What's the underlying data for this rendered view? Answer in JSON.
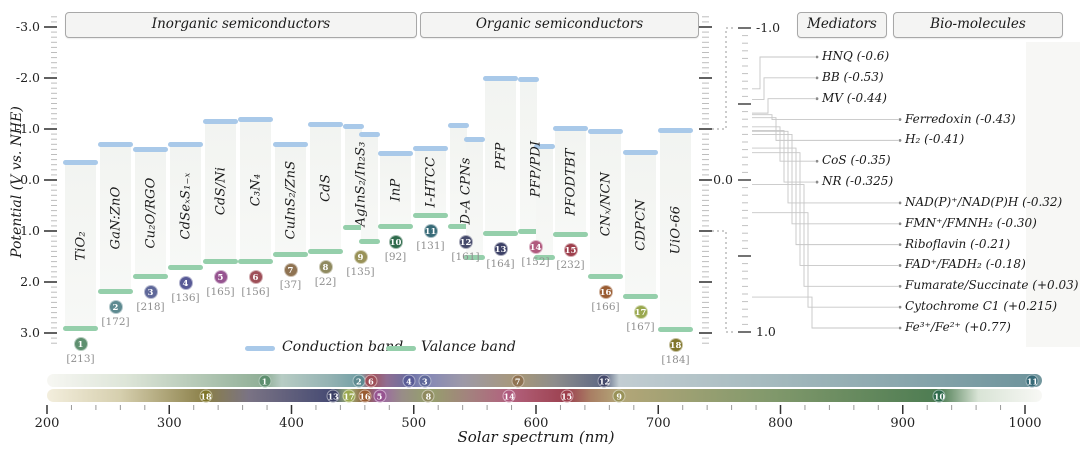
{
  "sections": {
    "inorganic": "Inorganic semiconductors",
    "organic": "Organic semiconductors",
    "mediators": "Mediators",
    "biomolecules": "Bio-molecules"
  },
  "y_axis": {
    "title": "Potential (V vs. NHE)",
    "ticks": [
      -3,
      -2,
      -1,
      0,
      1,
      2,
      3
    ],
    "minor_step": 0.1
  },
  "right_axis": {
    "ticks": [
      -1,
      0,
      1
    ],
    "minor_step": 0.05,
    "range": [
      -1,
      1
    ]
  },
  "legend": {
    "conduction_label": "Conduction band",
    "valence_label": "Valance band",
    "conduction_color": "#a9c9e9",
    "valence_color": "#95cfab"
  },
  "chart_data": {
    "type": "band-energy-diagram",
    "ylabel": "Potential (V vs. NHE)",
    "ylim": [
      -3.2,
      3.2
    ],
    "semiconductors": [
      {
        "n": 1,
        "label": "TiO₂",
        "cite": "[213]",
        "color": "#5e8f6f",
        "group": "inorganic",
        "bands": [
          {
            "cb": -0.35,
            "vb": 2.92
          }
        ],
        "badge_bar": 0,
        "edge_nm": 378,
        "spectrum_row": "top"
      },
      {
        "n": 2,
        "label": "GaN:ZnO",
        "cite": "[172]",
        "color": "#5d8a90",
        "group": "inorganic",
        "bands": [
          {
            "cb": -0.7,
            "vb": 2.2
          }
        ],
        "badge_bar": 0,
        "edge_nm": 455,
        "spectrum_row": "top"
      },
      {
        "n": 3,
        "label": "Cu₂O/RGO",
        "cite": "[218]",
        "color": "#5f6899",
        "group": "inorganic",
        "bands": [
          {
            "cb": -0.6,
            "vb": 1.9
          }
        ],
        "badge_bar": 0,
        "edge_nm": 509,
        "spectrum_row": "top"
      },
      {
        "n": 4,
        "label": "CdSeₓS₁₋ₓ",
        "cite": "[136]",
        "color": "#585a96",
        "group": "inorganic",
        "bands": [
          {
            "cb": -0.7,
            "vb": 1.72
          }
        ],
        "badge_bar": 0,
        "edge_nm": 496,
        "spectrum_row": "top"
      },
      {
        "n": 5,
        "label": "CdS/Ni",
        "cite": "[165]",
        "color": "#965490",
        "group": "inorganic",
        "bands": [
          {
            "cb": -1.15,
            "vb": 1.6
          }
        ],
        "badge_bar": 0,
        "edge_nm": 472,
        "spectrum_row": "bottom"
      },
      {
        "n": 6,
        "label": "C₃N₄",
        "cite": "[156]",
        "color": "#9e4f58",
        "group": "inorganic",
        "bands": [
          {
            "cb": -1.2,
            "vb": 1.6
          }
        ],
        "badge_bar": 0,
        "edge_nm": 465,
        "spectrum_row": "top"
      },
      {
        "n": 7,
        "label": "CuInS₂/ZnS",
        "cite": "[37]",
        "color": "#8f7352",
        "group": "inorganic",
        "bands": [
          {
            "cb": -0.7,
            "vb": 1.47
          }
        ],
        "badge_bar": 0,
        "edge_nm": 585,
        "spectrum_row": "top"
      },
      {
        "n": 8,
        "label": "CdS",
        "cite": "[22]",
        "color": "#8f8a5f",
        "group": "inorganic",
        "bands": [
          {
            "cb": -1.1,
            "vb": 1.42
          }
        ],
        "badge_bar": 0,
        "edge_nm": 512,
        "spectrum_row": "bottom"
      },
      {
        "n": 9,
        "label": "AgInS₂/In₂S₃",
        "cite": "[135]",
        "color": "#999258",
        "group": "inorganic",
        "bands": [
          {
            "cb": -1.05,
            "vb": 0.95
          },
          {
            "cb": -0.9,
            "vb": 1.22
          }
        ],
        "badge_bar": 1,
        "edge_nm": 668,
        "spectrum_row": "bottom"
      },
      {
        "n": 10,
        "label": "InP",
        "cite": "[92]",
        "color": "#2f6b4c",
        "group": "inorganic",
        "bands": [
          {
            "cb": -0.53,
            "vb": 0.92
          }
        ],
        "badge_bar": 0,
        "edge_nm": 930,
        "spectrum_row": "bottom"
      },
      {
        "n": 11,
        "label": "I-HTCC",
        "cite": "[131]",
        "color": "#386b78",
        "group": "organic",
        "bands": [
          {
            "cb": -0.63,
            "vb": 0.7
          }
        ],
        "badge_bar": 0,
        "edge_nm": 1006,
        "spectrum_row": "top"
      },
      {
        "n": 12,
        "label": "D-A CPNs",
        "cite": "[161]",
        "color": "#454a6b",
        "group": "organic",
        "bands": [
          {
            "cb": -1.08,
            "vb": 0.92
          },
          {
            "cb": -0.8,
            "vb": 1.53
          }
        ],
        "badge_bar": 0,
        "edge_nm": 656,
        "spectrum_row": "top"
      },
      {
        "n": 13,
        "label": "PFP",
        "cite": "[164]",
        "color": "#3c4066",
        "group": "organic",
        "bands": [
          {
            "cb": -2.0,
            "vb": 1.06
          }
        ],
        "badge_bar": 0,
        "edge_nm": 434,
        "spectrum_row": "bottom"
      },
      {
        "n": 14,
        "label": "PFP/PDI",
        "cite": "[152]",
        "color": "#b05a7e",
        "group": "organic",
        "bands": [
          {
            "cb": -1.98,
            "vb": 1.02
          },
          {
            "cb": -0.67,
            "vb": 1.53
          }
        ],
        "badge_bar": 0,
        "edge_nm": 578,
        "spectrum_row": "bottom"
      },
      {
        "n": 15,
        "label": "PFODTBT",
        "cite": "[232]",
        "color": "#9e3f4c",
        "group": "organic",
        "bands": [
          {
            "cb": -1.02,
            "vb": 1.08
          }
        ],
        "badge_bar": 0,
        "edge_nm": 625,
        "spectrum_row": "bottom"
      },
      {
        "n": 16,
        "label": "CNₓ/NCN",
        "cite": "[166]",
        "color": "#9a5c32",
        "group": "organic",
        "bands": [
          {
            "cb": -0.96,
            "vb": 1.9
          }
        ],
        "badge_bar": 0,
        "edge_nm": 460,
        "spectrum_row": "bottom"
      },
      {
        "n": 17,
        "label": "CDPCN",
        "cite": "[167]",
        "color": "#9aa84f",
        "group": "organic",
        "bands": [
          {
            "cb": -0.55,
            "vb": 2.3
          }
        ],
        "badge_bar": 0,
        "edge_nm": 447,
        "spectrum_row": "bottom"
      },
      {
        "n": 18,
        "label": "UiO-66",
        "cite": "[184]",
        "color": "#80762c",
        "group": "organic",
        "bands": [
          {
            "cb": -0.98,
            "vb": 2.94
          }
        ],
        "badge_bar": 0,
        "edge_nm": 330,
        "spectrum_row": "bottom"
      }
    ],
    "mediators": [
      {
        "label": "HNQ (-0.6)",
        "v": -0.6
      },
      {
        "label": "BB (-0.53)",
        "v": -0.53
      },
      {
        "label": "MV (-0.44)",
        "v": -0.44
      },
      {
        "label": "CoS (-0.35)",
        "v": -0.35
      },
      {
        "label": "NR (-0.325)",
        "v": -0.325
      }
    ],
    "biomolecules": [
      {
        "label": "Ferredoxin (-0.43)",
        "v": -0.43
      },
      {
        "label": "H₂ (-0.41)",
        "v": -0.41
      },
      {
        "label": "NAD(P)⁺/NAD(P)H (-0.32)",
        "v": -0.32
      },
      {
        "label": "FMN⁺/FMNH₂ (-0.30)",
        "v": -0.3
      },
      {
        "label": "Riboflavin (-0.21)",
        "v": -0.21
      },
      {
        "label": "FAD⁺/FADH₂ (-0.18)",
        "v": -0.18
      },
      {
        "label": "Fumarate/Succinate (+0.03)",
        "v": 0.03
      },
      {
        "label": "Cytochrome C1 (+0.215)",
        "v": 0.215
      },
      {
        "label": "Fe³⁺/Fe²⁺ (+0.77)",
        "v": 0.77
      }
    ],
    "solar_spectrum": {
      "xlabel": "Solar spectrum (nm)",
      "x_ticks": [
        200,
        300,
        400,
        500,
        600,
        700,
        800,
        900,
        1000
      ],
      "minor_tick_nm": 20,
      "xlim": [
        200,
        1014
      ],
      "top_row_gradient": [
        [
          200,
          "#f7f7f3"
        ],
        [
          265,
          "#dde5d8"
        ],
        [
          378,
          "#8fae96"
        ],
        [
          392,
          "#b7ccc4"
        ],
        [
          430,
          "#95b3b3"
        ],
        [
          455,
          "#74a0a6"
        ],
        [
          459,
          "#8d8f99"
        ],
        [
          466,
          "#a25560"
        ],
        [
          478,
          "#8f6d92"
        ],
        [
          496,
          "#6a6fa0"
        ],
        [
          509,
          "#8487b8"
        ],
        [
          540,
          "#9d99a8"
        ],
        [
          585,
          "#a89878"
        ],
        [
          615,
          "#8e8d8c"
        ],
        [
          656,
          "#5d6884"
        ],
        [
          668,
          "#c2cdd2"
        ],
        [
          780,
          "#a8bcc0"
        ],
        [
          1006,
          "#6f949c"
        ],
        [
          1014,
          "#74989f"
        ]
      ],
      "bottom_row_gradient": [
        [
          200,
          "#f3eedd"
        ],
        [
          260,
          "#d6cfae"
        ],
        [
          330,
          "#8a7f48"
        ],
        [
          365,
          "#7a7384"
        ],
        [
          434,
          "#454a73"
        ],
        [
          441,
          "#7a8a74"
        ],
        [
          447,
          "#a3b379"
        ],
        [
          453,
          "#97885c"
        ],
        [
          460,
          "#8a5c38"
        ],
        [
          466,
          "#935f71"
        ],
        [
          472,
          "#9c64a4"
        ],
        [
          490,
          "#988c88"
        ],
        [
          512,
          "#95a06b"
        ],
        [
          545,
          "#a3827e"
        ],
        [
          578,
          "#b2627f"
        ],
        [
          600,
          "#a85266"
        ],
        [
          625,
          "#9c4150"
        ],
        [
          645,
          "#a97f64"
        ],
        [
          668,
          "#b3a678"
        ],
        [
          790,
          "#82996c"
        ],
        [
          930,
          "#4d7c52"
        ],
        [
          962,
          "#d9e4d6"
        ],
        [
          1014,
          "#f8f8f5"
        ]
      ]
    }
  }
}
